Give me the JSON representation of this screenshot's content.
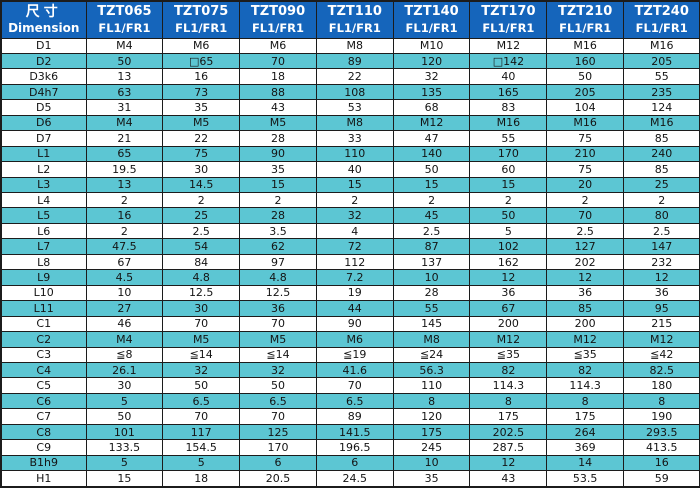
{
  "table": {
    "corner": {
      "cn": "尺寸",
      "en": "Dimension"
    },
    "column_sub_label": "FL1/FR1",
    "columns": [
      {
        "model": "TZT065",
        "sub": "FL1/FR1"
      },
      {
        "model": "TZT075",
        "sub": "FL1/FR1"
      },
      {
        "model": "TZT090",
        "sub": "FL1/FR1"
      },
      {
        "model": "TZT110",
        "sub": "FL1/FR1"
      },
      {
        "model": "TZT140",
        "sub": "FL1/FR1"
      },
      {
        "model": "TZT170",
        "sub": "FL1/FR1"
      },
      {
        "model": "TZT210",
        "sub": "FL1/FR1"
      },
      {
        "model": "TZT240",
        "sub": "FL1/FR1"
      }
    ],
    "rows": [
      {
        "label": "D1",
        "values": [
          "M4",
          "M6",
          "M6",
          "M8",
          "M10",
          "M12",
          "M16",
          "M16"
        ]
      },
      {
        "label": "D2",
        "values": [
          "50",
          "□65",
          "70",
          "89",
          "120",
          "□142",
          "160",
          "205"
        ]
      },
      {
        "label": "D3k6",
        "values": [
          "13",
          "16",
          "18",
          "22",
          "32",
          "40",
          "50",
          "55"
        ]
      },
      {
        "label": "D4h7",
        "values": [
          "63",
          "73",
          "88",
          "108",
          "135",
          "165",
          "205",
          "235"
        ]
      },
      {
        "label": "D5",
        "values": [
          "31",
          "35",
          "43",
          "53",
          "68",
          "83",
          "104",
          "124"
        ]
      },
      {
        "label": "D6",
        "values": [
          "M4",
          "M5",
          "M5",
          "M8",
          "M12",
          "M16",
          "M16",
          "M16"
        ]
      },
      {
        "label": "D7",
        "values": [
          "21",
          "22",
          "28",
          "33",
          "47",
          "55",
          "75",
          "85"
        ]
      },
      {
        "label": "L1",
        "values": [
          "65",
          "75",
          "90",
          "110",
          "140",
          "170",
          "210",
          "240"
        ]
      },
      {
        "label": "L2",
        "values": [
          "19.5",
          "30",
          "35",
          "40",
          "50",
          "60",
          "75",
          "85"
        ]
      },
      {
        "label": "L3",
        "values": [
          "13",
          "14.5",
          "15",
          "15",
          "15",
          "15",
          "20",
          "25"
        ]
      },
      {
        "label": "L4",
        "values": [
          "2",
          "2",
          "2",
          "2",
          "2",
          "2",
          "2",
          "2"
        ]
      },
      {
        "label": "L5",
        "values": [
          "16",
          "25",
          "28",
          "32",
          "45",
          "50",
          "70",
          "80"
        ]
      },
      {
        "label": "L6",
        "values": [
          "2",
          "2.5",
          "3.5",
          "4",
          "2.5",
          "5",
          "2.5",
          "2.5"
        ]
      },
      {
        "label": "L7",
        "values": [
          "47.5",
          "54",
          "62",
          "72",
          "87",
          "102",
          "127",
          "147"
        ]
      },
      {
        "label": "L8",
        "values": [
          "67",
          "84",
          "97",
          "112",
          "137",
          "162",
          "202",
          "232"
        ]
      },
      {
        "label": "L9",
        "values": [
          "4.5",
          "4.8",
          "4.8",
          "7.2",
          "10",
          "12",
          "12",
          "12"
        ]
      },
      {
        "label": "L10",
        "values": [
          "10",
          "12.5",
          "12.5",
          "19",
          "28",
          "36",
          "36",
          "36"
        ]
      },
      {
        "label": "L11",
        "values": [
          "27",
          "30",
          "36",
          "44",
          "55",
          "67",
          "85",
          "95"
        ]
      },
      {
        "label": "C1",
        "values": [
          "46",
          "70",
          "70",
          "90",
          "145",
          "200",
          "200",
          "215"
        ]
      },
      {
        "label": "C2",
        "values": [
          "M4",
          "M5",
          "M5",
          "M6",
          "M8",
          "M12",
          "M12",
          "M12"
        ]
      },
      {
        "label": "C3",
        "values": [
          "≦8",
          "≦14",
          "≦14",
          "≦19",
          "≦24",
          "≦35",
          "≦35",
          "≦42"
        ]
      },
      {
        "label": "C4",
        "values": [
          "26.1",
          "32",
          "32",
          "41.6",
          "56.3",
          "82",
          "82",
          "82.5"
        ]
      },
      {
        "label": "C5",
        "values": [
          "30",
          "50",
          "50",
          "70",
          "110",
          "114.3",
          "114.3",
          "180"
        ]
      },
      {
        "label": "C6",
        "values": [
          "5",
          "6.5",
          "6.5",
          "6.5",
          "8",
          "8",
          "8",
          "8"
        ]
      },
      {
        "label": "C7",
        "values": [
          "50",
          "70",
          "70",
          "89",
          "120",
          "175",
          "175",
          "190"
        ]
      },
      {
        "label": "C8",
        "values": [
          "101",
          "117",
          "125",
          "141.5",
          "175",
          "202.5",
          "264",
          "293.5"
        ]
      },
      {
        "label": "C9",
        "values": [
          "133.5",
          "154.5",
          "170",
          "196.5",
          "245",
          "287.5",
          "369",
          "413.5"
        ]
      },
      {
        "label": "B1h9",
        "values": [
          "5",
          "5",
          "6",
          "6",
          "10",
          "12",
          "14",
          "16"
        ]
      },
      {
        "label": "H1",
        "values": [
          "15",
          "18",
          "20.5",
          "24.5",
          "35",
          "43",
          "53.5",
          "59"
        ]
      }
    ],
    "colors": {
      "header_bg": "#1565bb",
      "alt_row_bg": "#5cc6d3",
      "border": "#1c1c1c",
      "header_text": "#ffffff",
      "body_text": "#141414"
    }
  }
}
